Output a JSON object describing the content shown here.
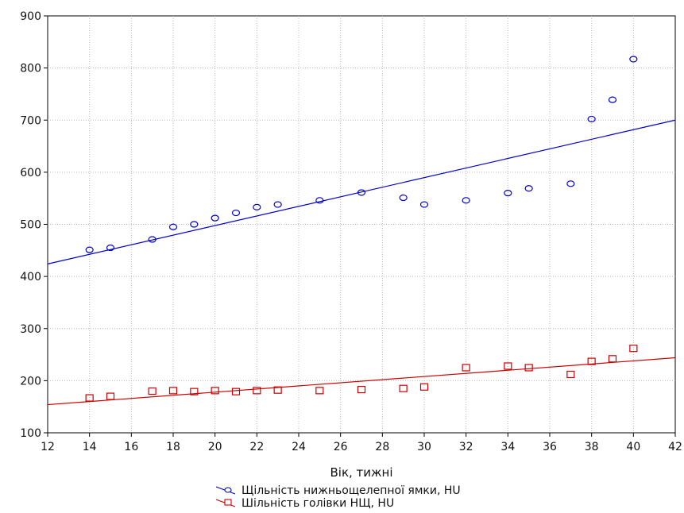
{
  "chart_data": {
    "type": "scatter",
    "title": "",
    "xlabel": "Вік, тижні",
    "ylabel": "",
    "xlim": [
      12,
      42
    ],
    "ylim": [
      100,
      900
    ],
    "x_ticks": [
      12,
      14,
      16,
      18,
      20,
      22,
      24,
      26,
      28,
      30,
      32,
      34,
      36,
      38,
      40,
      42
    ],
    "y_ticks": [
      100,
      200,
      300,
      400,
      500,
      600,
      700,
      800,
      900
    ],
    "grid": true,
    "legend_position": "bottom",
    "series": [
      {
        "name": "Щільність нижньощелепної ямки, HU",
        "marker": "circle",
        "color": "#0000cc",
        "points": [
          [
            14,
            451
          ],
          [
            15,
            455
          ],
          [
            17,
            471
          ],
          [
            18,
            495
          ],
          [
            19,
            500
          ],
          [
            20,
            512
          ],
          [
            21,
            522
          ],
          [
            22,
            533
          ],
          [
            23,
            538
          ],
          [
            25,
            546
          ],
          [
            27,
            561
          ],
          [
            29,
            551
          ],
          [
            30,
            538
          ],
          [
            32,
            546
          ],
          [
            34,
            560
          ],
          [
            35,
            569
          ],
          [
            37,
            578
          ],
          [
            38,
            702
          ],
          [
            39,
            739
          ],
          [
            40,
            817
          ]
        ],
        "trend": {
          "x": [
            12,
            42
          ],
          "y": [
            424,
            700
          ]
        }
      },
      {
        "name": "Шільність голівки НЩ, HU",
        "marker": "square",
        "color": "#cc0000",
        "points": [
          [
            14,
            167
          ],
          [
            15,
            170
          ],
          [
            17,
            180
          ],
          [
            18,
            181
          ],
          [
            19,
            179
          ],
          [
            20,
            181
          ],
          [
            21,
            179
          ],
          [
            22,
            181
          ],
          [
            23,
            182
          ],
          [
            25,
            181
          ],
          [
            27,
            183
          ],
          [
            29,
            185
          ],
          [
            30,
            188
          ],
          [
            32,
            225
          ],
          [
            34,
            228
          ],
          [
            35,
            225
          ],
          [
            37,
            212
          ],
          [
            38,
            237
          ],
          [
            39,
            242
          ],
          [
            40,
            262
          ]
        ],
        "trend": {
          "x": [
            12,
            42
          ],
          "y": [
            154,
            244
          ]
        }
      }
    ]
  }
}
